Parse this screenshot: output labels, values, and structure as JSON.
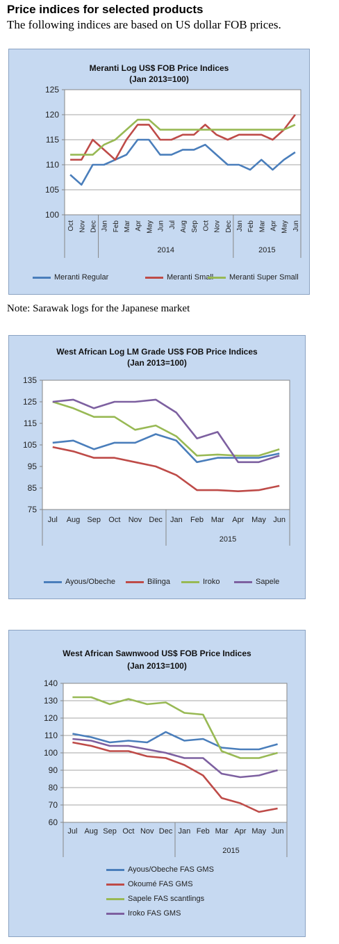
{
  "page": {
    "title": "Price indices for selected products",
    "subtitle": "The following indices are based on US dollar FOB prices.",
    "note": "Note: Sarawak logs for the Japanese market"
  },
  "chart_data": [
    {
      "type": "line",
      "title": "Meranti Log US$ FOB Price Indices",
      "subtitle": "(Jan 2013=100)",
      "categories": [
        "Oct",
        "Nov",
        "Dec",
        "Jan",
        "Feb",
        "Mar",
        "Apr",
        "May",
        "Jun",
        "Jul",
        "Aug",
        "Sep",
        "Oct",
        "Nov",
        "Dec",
        "Jan",
        "Feb",
        "Mar",
        "Apr",
        "May",
        "Jun"
      ],
      "year_groups": [
        {
          "label": "",
          "start": 0,
          "end": 2
        },
        {
          "label": "2014",
          "start": 3,
          "end": 14
        },
        {
          "label": "2015",
          "start": 15,
          "end": 20
        }
      ],
      "tick_labels_rotated": true,
      "ylim": [
        100,
        125
      ],
      "yticks": [
        100,
        105,
        110,
        115,
        120,
        125
      ],
      "grid": true,
      "legend_position": "bottom",
      "series": [
        {
          "name": "Meranti Regular",
          "color": "#4a7ebb",
          "values": [
            108,
            106,
            110,
            110,
            111,
            112,
            115,
            115,
            112,
            112,
            113,
            113,
            114,
            112,
            110,
            110,
            109,
            111,
            109,
            111,
            112.5
          ]
        },
        {
          "name": "Meranti Small",
          "color": "#be4b48",
          "values": [
            111,
            111,
            115,
            113,
            111,
            115,
            118,
            118,
            115,
            115,
            116,
            116,
            118,
            116,
            115,
            116,
            116,
            116,
            115,
            117,
            120
          ]
        },
        {
          "name": "Meranti Super Small",
          "color": "#98b954",
          "values": [
            112,
            112,
            112,
            114,
            115,
            117,
            119,
            119,
            117,
            117,
            117,
            117,
            117,
            117,
            117,
            117,
            117,
            117,
            117,
            117,
            118
          ]
        }
      ]
    },
    {
      "type": "line",
      "title": "West African Log LM Grade US$ FOB Price Indices",
      "subtitle": "(Jan 2013=100)",
      "categories": [
        "Jul",
        "Aug",
        "Sep",
        "Oct",
        "Nov",
        "Dec",
        "Jan",
        "Feb",
        "Mar",
        "Apr",
        "May",
        "Jun"
      ],
      "year_groups": [
        {
          "label": "",
          "start": 0,
          "end": 5
        },
        {
          "label": "2015",
          "start": 6,
          "end": 11
        }
      ],
      "tick_labels_rotated": false,
      "ylim": [
        75,
        135
      ],
      "yticks": [
        75,
        85,
        95,
        105,
        115,
        125,
        135
      ],
      "grid": false,
      "legend_position": "bottom",
      "series": [
        {
          "name": "Ayous/Obeche",
          "color": "#4a7ebb",
          "values": [
            106,
            107,
            103,
            106,
            106,
            110,
            107,
            97,
            99,
            99,
            99,
            101
          ]
        },
        {
          "name": "Bilinga",
          "color": "#be4b48",
          "values": [
            104,
            102,
            99,
            99,
            97,
            95,
            91,
            84,
            84,
            83.5,
            84,
            86
          ]
        },
        {
          "name": "Iroko",
          "color": "#98b954",
          "values": [
            125,
            122,
            118,
            118,
            112,
            114,
            109,
            100,
            100.5,
            100,
            100,
            103
          ]
        },
        {
          "name": "Sapele",
          "color": "#7d60a0",
          "values": [
            125,
            126,
            122,
            125,
            125,
            126,
            120,
            108,
            111,
            97,
            97,
            100
          ]
        }
      ]
    },
    {
      "type": "line",
      "title": "West African Sawnwood US$ FOB Price Indices",
      "subtitle": "(Jan 2013=100)",
      "categories": [
        "Jul",
        "Aug",
        "Sep",
        "Oct",
        "Nov",
        "Dec",
        "Jan",
        "Feb",
        "Mar",
        "Apr",
        "May",
        "Jun"
      ],
      "year_groups": [
        {
          "label": "",
          "start": 0,
          "end": 5
        },
        {
          "label": "2015",
          "start": 6,
          "end": 11
        }
      ],
      "tick_labels_rotated": false,
      "ylim": [
        60,
        140
      ],
      "yticks": [
        60,
        70,
        80,
        90,
        100,
        110,
        120,
        130,
        140
      ],
      "grid": true,
      "legend_position": "bottom",
      "series": [
        {
          "name": "Ayous/Obeche  FAS GMS",
          "color": "#4a7ebb",
          "values": [
            111,
            109,
            106,
            107,
            106,
            112,
            107,
            108,
            103,
            102,
            102,
            105
          ]
        },
        {
          "name": "Okoumé  FAS GMS",
          "color": "#be4b48",
          "values": [
            106,
            104,
            101,
            101,
            98,
            97,
            93,
            87,
            74,
            71,
            66,
            68
          ]
        },
        {
          "name": "Sapele FAS scantlings",
          "color": "#98b954",
          "values": [
            132,
            132,
            128,
            131,
            128,
            129,
            123,
            122,
            101,
            97,
            97,
            100
          ]
        },
        {
          "name": "Iroko FAS GMS",
          "color": "#7d60a0",
          "values": [
            108,
            107,
            104,
            104,
            102,
            100,
            97,
            97,
            88,
            86,
            87,
            90
          ]
        }
      ]
    }
  ]
}
